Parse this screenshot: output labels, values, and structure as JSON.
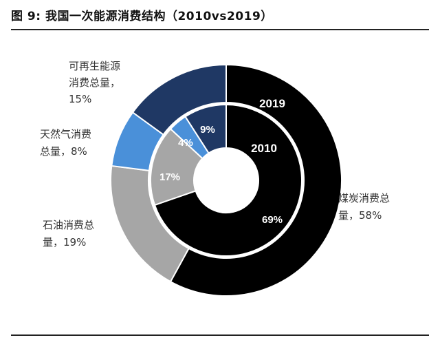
{
  "title": "图 9:  我国一次能源消费结构（2010vs2019）",
  "chart_data": {
    "type": "pie",
    "subtype": "donut",
    "rings": [
      {
        "name": "2019",
        "position": "outer",
        "slices": [
          {
            "key": "coal",
            "label_lines": [
              "煤炭消费总",
              "量，58%"
            ],
            "value": 58,
            "color": "#000000"
          },
          {
            "key": "oil",
            "label_lines": [
              "石油消费总",
              "量，19%"
            ],
            "value": 19,
            "color": "#a6a6a6"
          },
          {
            "key": "gas",
            "label_lines": [
              "天然气消费",
              "总量，8%"
            ],
            "value": 8,
            "color": "#4a90d9"
          },
          {
            "key": "renew",
            "label_lines": [
              "可再生能源",
              "消费总量，",
              "15%"
            ],
            "value": 15,
            "color": "#1f3864"
          }
        ]
      },
      {
        "name": "2010",
        "position": "inner",
        "slices": [
          {
            "key": "coal",
            "label": "69%",
            "value": 69,
            "color": "#000000"
          },
          {
            "key": "oil",
            "label": "17%",
            "value": 17,
            "color": "#a6a6a6"
          },
          {
            "key": "gas",
            "label": "4%",
            "value": 4,
            "color": "#4a90d9"
          },
          {
            "key": "renew",
            "label": "9%",
            "value": 9,
            "color": "#1f3864"
          }
        ]
      }
    ]
  }
}
